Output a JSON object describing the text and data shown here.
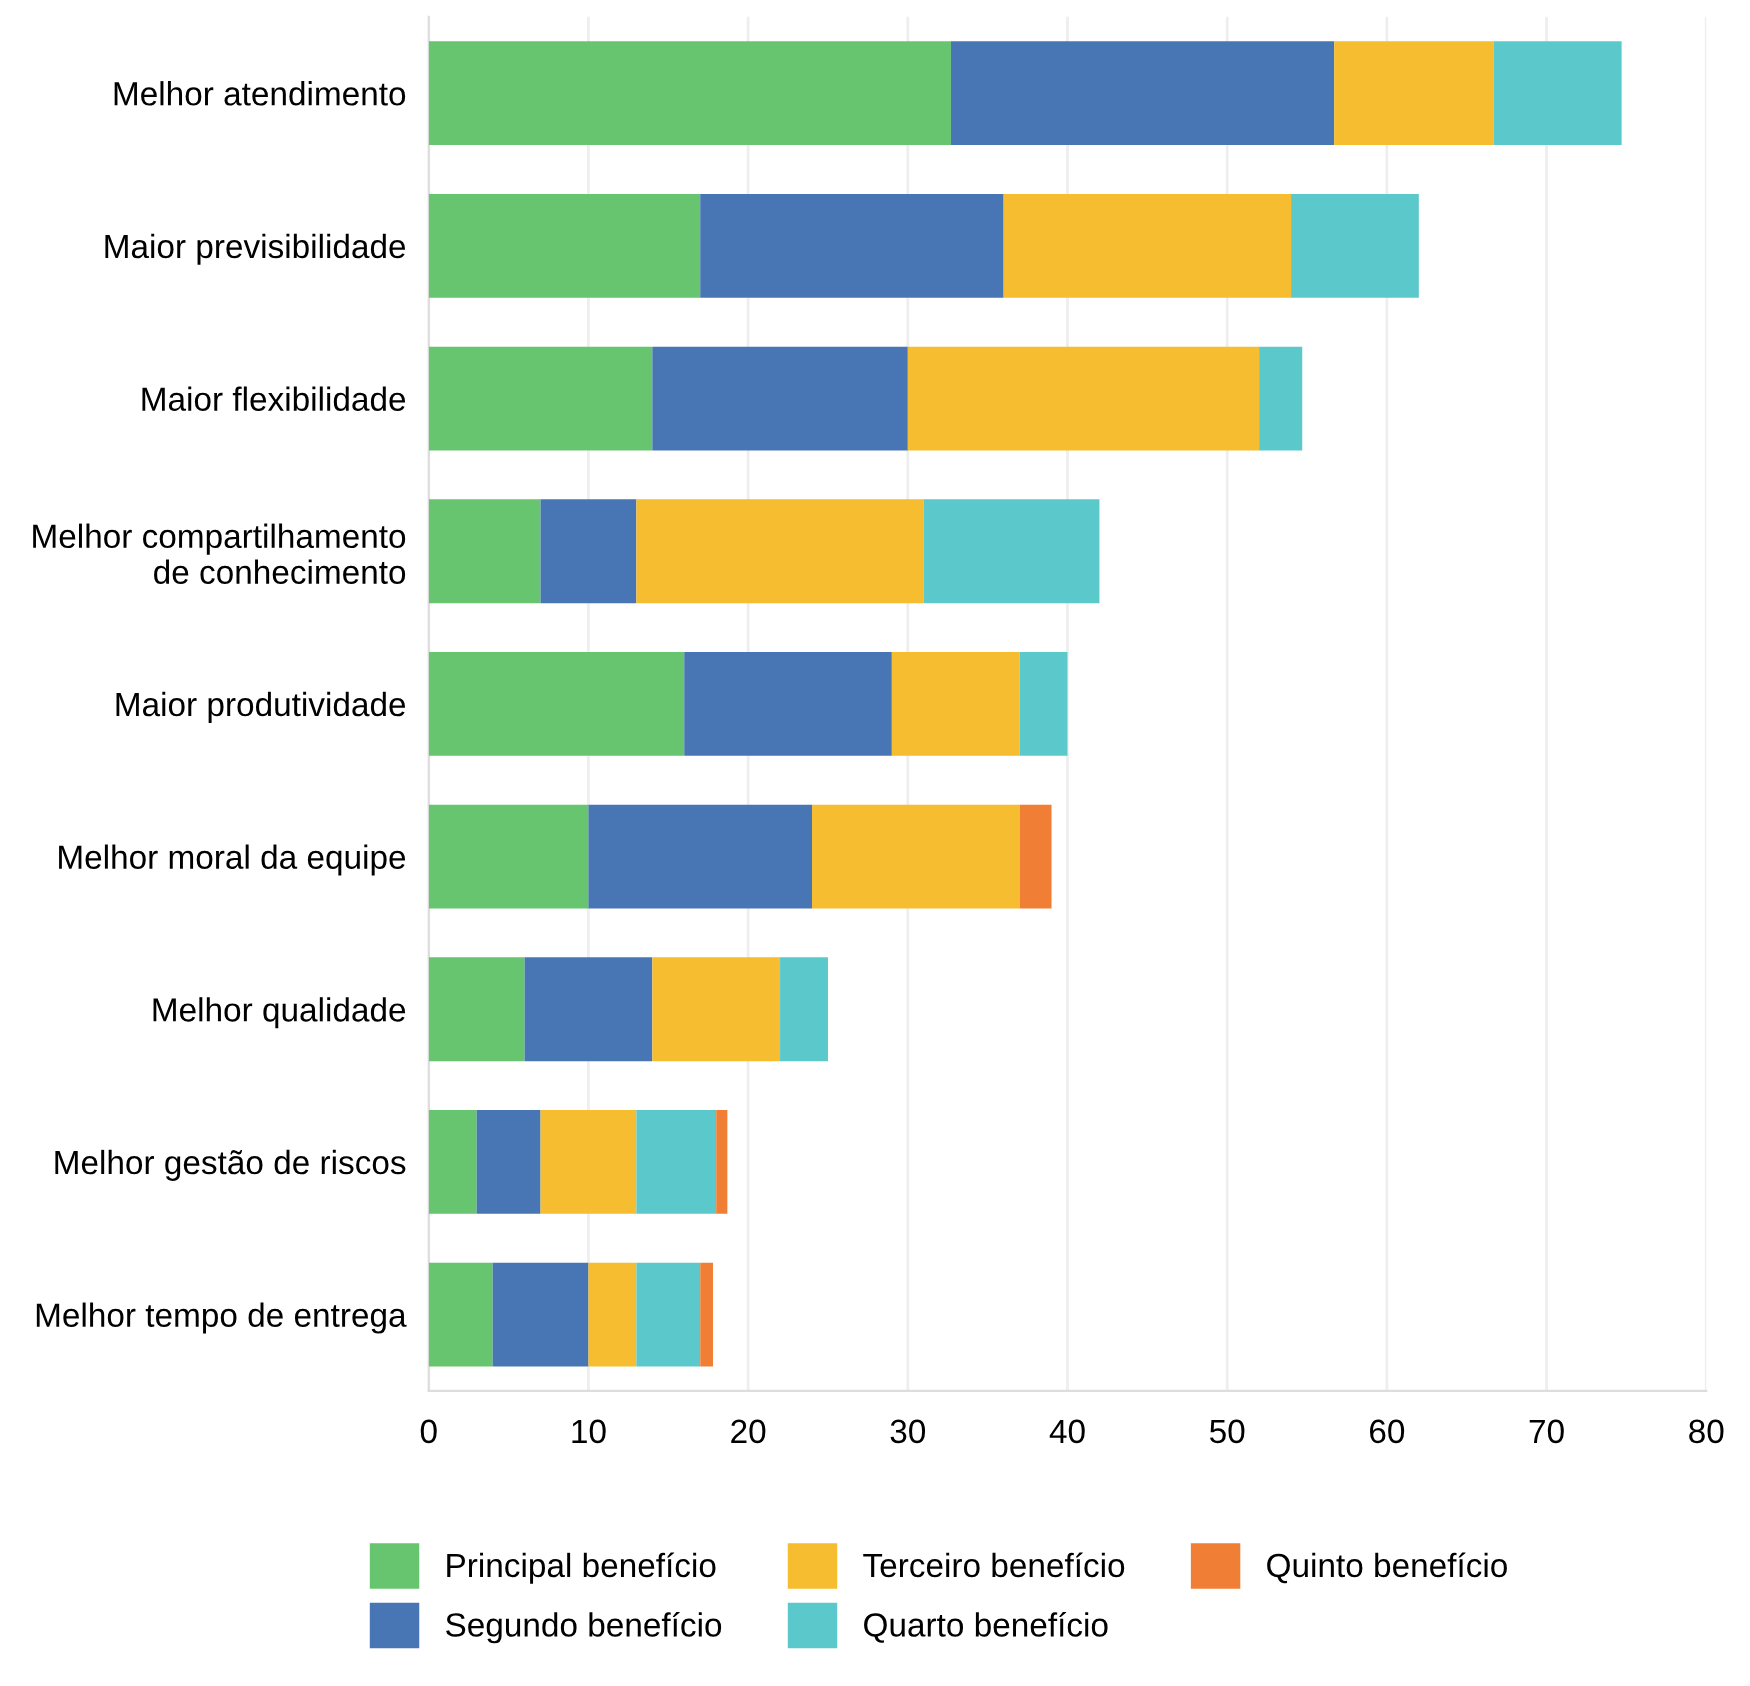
{
  "chart_data": {
    "type": "bar",
    "orientation": "horizontal",
    "stacked": true,
    "categories": [
      "Melhor atendimento",
      "Maior previsibilidade",
      "Maior flexibilidade",
      "Melhor compartilhamento\nde conhecimento",
      "Maior produtividade",
      "Melhor moral da equipe",
      "Melhor qualidade",
      "Melhor gestão de riscos",
      "Melhor tempo de entrega"
    ],
    "series": [
      {
        "name": "Principal benefício",
        "color": "#66c56e",
        "values": [
          32.7,
          17,
          14,
          7,
          16,
          10,
          6,
          3,
          4
        ]
      },
      {
        "name": "Segundo benefício",
        "color": "#4876b5",
        "values": [
          24,
          19,
          16,
          6,
          13,
          14,
          8,
          4,
          6
        ]
      },
      {
        "name": "Terceiro benefício",
        "color": "#f5bd2f",
        "values": [
          10,
          18,
          22,
          18,
          8,
          13,
          8,
          6,
          3
        ]
      },
      {
        "name": "Quarto benefício",
        "color": "#5bc8cc",
        "values": [
          8,
          8,
          2.7,
          11,
          3,
          0,
          3,
          5,
          4
        ]
      },
      {
        "name": "Quinto benefício",
        "color": "#f07f35",
        "values": [
          0,
          0,
          0,
          0,
          0,
          2,
          0,
          0.7,
          0.8
        ]
      }
    ],
    "xlim": [
      0,
      80
    ],
    "xticks": [
      0,
      10,
      20,
      30,
      40,
      50,
      60,
      70,
      80
    ],
    "grid": "x",
    "legend": "bottom"
  }
}
